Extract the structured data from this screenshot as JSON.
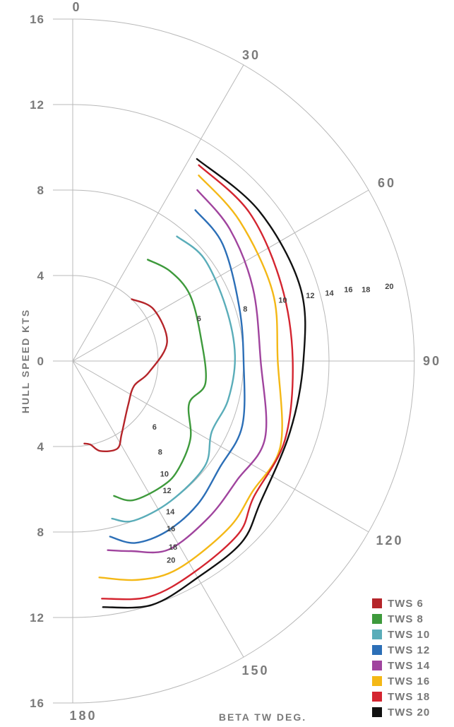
{
  "chart_data": {
    "type": "polar-line",
    "radial_axis": {
      "label": "HULL SPEED KTS",
      "ticks_top": [
        "16",
        "12",
        "8",
        "4",
        "0"
      ],
      "ticks_bottom": [
        "4",
        "8",
        "12",
        "16"
      ],
      "range": [
        0,
        16
      ]
    },
    "angular_axis": {
      "label": "BETA TW DEG.",
      "ticks": [
        "0",
        "30",
        "60",
        "90",
        "120",
        "150",
        "180"
      ],
      "range": [
        0,
        180
      ]
    },
    "series": [
      {
        "name": "TWS 6",
        "color": "#b5252a",
        "label": "6",
        "points": [
          [
            43.7,
            4.0
          ],
          [
            57.6,
            4.5
          ],
          [
            78.9,
            4.5
          ],
          [
            98.6,
            3.6
          ],
          [
            112,
            3.1
          ],
          [
            128,
            3.3
          ],
          [
            146,
            4.1
          ],
          [
            153,
            4.6
          ],
          [
            163,
            4.4
          ],
          [
            168,
            4.0
          ],
          [
            172,
            3.9
          ]
        ]
      },
      {
        "name": "TWS 8",
        "color": "#3e9a3c",
        "label": "8",
        "points": [
          [
            36.5,
            5.9
          ],
          [
            47.2,
            6.2
          ],
          [
            60.6,
            6.3
          ],
          [
            80,
            6.1
          ],
          [
            99.4,
            6.3
          ],
          [
            110,
            5.8
          ],
          [
            123.4,
            6.6
          ],
          [
            136.4,
            7.1
          ],
          [
            145,
            7.2
          ],
          [
            156.6,
            7.1
          ],
          [
            163,
            6.6
          ]
        ]
      },
      {
        "name": "TWS 10",
        "color": "#5aadb9",
        "label": "10",
        "points": [
          [
            39.9,
            7.6
          ],
          [
            52,
            7.8
          ],
          [
            70.4,
            7.6
          ],
          [
            88,
            7.6
          ],
          [
            104,
            7.5
          ],
          [
            117,
            7.3
          ],
          [
            128.4,
            7.9
          ],
          [
            145,
            8.0
          ],
          [
            159,
            8.0
          ],
          [
            166,
            7.6
          ]
        ]
      },
      {
        "name": "TWS 12",
        "color": "#2c6fb7",
        "label": "12",
        "points": [
          [
            39.1,
            9.1
          ],
          [
            52,
            8.9
          ],
          [
            71.8,
            8.2
          ],
          [
            90,
            8.0
          ],
          [
            111,
            8.5
          ],
          [
            126,
            8.5
          ],
          [
            139,
            8.9
          ],
          [
            151,
            9.1
          ],
          [
            161,
            9.0
          ],
          [
            168,
            8.4
          ]
        ]
      },
      {
        "name": "TWS 14",
        "color": "#a0449e",
        "label": "14",
        "points": [
          [
            36.1,
            9.9
          ],
          [
            50,
            9.6
          ],
          [
            68,
            9.1
          ],
          [
            90,
            8.8
          ],
          [
            111.8,
            9.7
          ],
          [
            126,
            9.5
          ],
          [
            139,
            9.7
          ],
          [
            153,
            9.9
          ],
          [
            163,
            9.3
          ],
          [
            169.5,
            9.0
          ]
        ]
      },
      {
        "name": "TWS 16",
        "color": "#f4b816",
        "label": "16",
        "points": [
          [
            34.2,
            10.5
          ],
          [
            50,
            10.2
          ],
          [
            71,
            9.9
          ],
          [
            90,
            9.6
          ],
          [
            112,
            10.5
          ],
          [
            126,
            10.4
          ],
          [
            137,
            10.7
          ],
          [
            153,
            10.9
          ],
          [
            163,
            10.7
          ],
          [
            173,
            10.2
          ]
        ]
      },
      {
        "name": "TWS 18",
        "color": "#d42530",
        "label": "18",
        "points": [
          [
            32.8,
            10.9
          ],
          [
            50,
            10.8
          ],
          [
            70,
            10.4
          ],
          [
            90,
            10.3
          ],
          [
            110.4,
            10.6
          ],
          [
            127,
            10.6
          ],
          [
            136,
            11.2
          ],
          [
            150,
            11.4
          ],
          [
            162,
            11.6
          ],
          [
            173,
            11.2
          ]
        ]
      },
      {
        "name": "TWS 20",
        "color": "#111111",
        "label": "20",
        "points": [
          [
            31.6,
            11.1
          ],
          [
            51,
            11.2
          ],
          [
            72,
            11.2
          ],
          [
            90,
            10.8
          ],
          [
            108,
            10.7
          ],
          [
            127,
            11.0
          ],
          [
            137,
            11.6
          ],
          [
            150,
            11.7
          ],
          [
            162,
            12.0
          ],
          [
            173,
            11.6
          ]
        ]
      }
    ],
    "legend_position": "bottom-right",
    "grid": true
  }
}
